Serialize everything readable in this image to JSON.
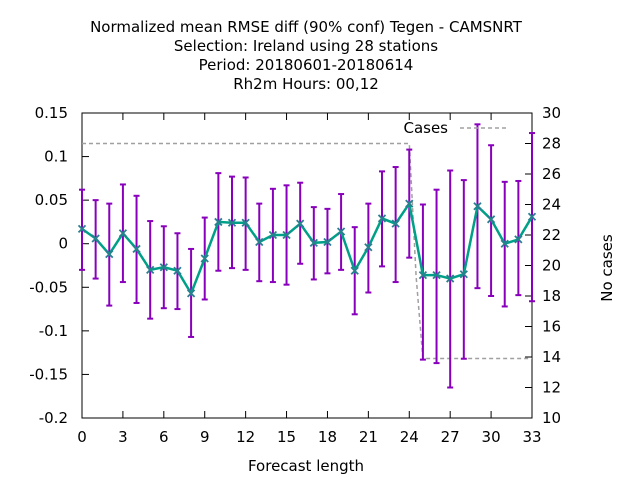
{
  "chart_data": {
    "type": "line",
    "title_lines": [
      "Normalized mean RMSE diff (90% conf) Tegen - CAMSNRT",
      "Selection: Ireland using    28 stations",
      "Period: 20180601-20180614",
      "Rh2m   Hours:  00,12"
    ],
    "xlabel": "Forecast length",
    "ylabel_right": "No cases",
    "xlim": [
      0,
      33
    ],
    "ylim": [
      -0.2,
      0.15
    ],
    "y2lim": [
      10,
      30
    ],
    "x_ticks": [
      0,
      3,
      6,
      9,
      12,
      15,
      18,
      21,
      24,
      27,
      30,
      33
    ],
    "y_ticks": [
      -0.2,
      -0.15,
      -0.1,
      -0.05,
      0,
      0.05,
      0.1,
      0.15
    ],
    "y_tick_labels": [
      "-0.2",
      "-0.15",
      "-0.1",
      "-0.05",
      "0",
      "0.05",
      "0.1",
      "0.15"
    ],
    "y2_ticks": [
      10,
      12,
      14,
      16,
      18,
      20,
      22,
      24,
      26,
      28,
      30
    ],
    "legend": {
      "position": "top-right",
      "entries": [
        "Cases"
      ]
    },
    "series": [
      {
        "kind": "errorbar-line",
        "color_line": "#00a088",
        "color_bar": "#8800bb",
        "x": [
          0,
          1,
          2,
          3,
          4,
          5,
          6,
          7,
          8,
          9,
          10,
          11,
          12,
          13,
          14,
          15,
          16,
          17,
          18,
          19,
          20,
          21,
          22,
          23,
          24,
          25,
          26,
          27,
          28,
          29,
          30,
          31,
          32,
          33
        ],
        "y": [
          0.017,
          0.006,
          -0.012,
          0.012,
          -0.006,
          -0.03,
          -0.027,
          -0.031,
          -0.057,
          -0.017,
          0.025,
          0.024,
          0.024,
          0.002,
          0.01,
          0.01,
          0.023,
          0.001,
          0.002,
          0.014,
          -0.031,
          -0.004,
          0.029,
          0.023,
          0.046,
          -0.036,
          -0.036,
          -0.04,
          -0.035,
          0.043,
          0.028,
          0.0,
          0.005,
          0.031
        ],
        "y_low": [
          -0.03,
          -0.04,
          -0.071,
          -0.044,
          -0.068,
          -0.086,
          -0.074,
          -0.075,
          -0.107,
          -0.064,
          -0.031,
          -0.028,
          -0.03,
          -0.043,
          -0.044,
          -0.047,
          -0.023,
          -0.041,
          -0.034,
          -0.03,
          -0.081,
          -0.056,
          -0.026,
          -0.044,
          -0.016,
          -0.133,
          -0.137,
          -0.165,
          -0.132,
          -0.051,
          -0.06,
          -0.072,
          -0.059,
          -0.066
        ],
        "y_high": [
          0.062,
          0.05,
          0.046,
          0.068,
          0.055,
          0.026,
          0.02,
          0.012,
          -0.006,
          0.03,
          0.081,
          0.077,
          0.076,
          0.046,
          0.063,
          0.067,
          0.07,
          0.042,
          0.04,
          0.057,
          0.019,
          0.046,
          0.083,
          0.088,
          0.108,
          0.045,
          0.062,
          0.084,
          0.073,
          0.137,
          0.113,
          0.071,
          0.072,
          0.127
        ]
      },
      {
        "name": "Cases",
        "kind": "step-right-axis",
        "color": "#a0a0a0",
        "dash": "dashed",
        "x": [
          0,
          24,
          24.5,
          25,
          33
        ],
        "y": [
          28,
          28,
          19.3,
          13.9,
          13.9
        ]
      }
    ]
  }
}
